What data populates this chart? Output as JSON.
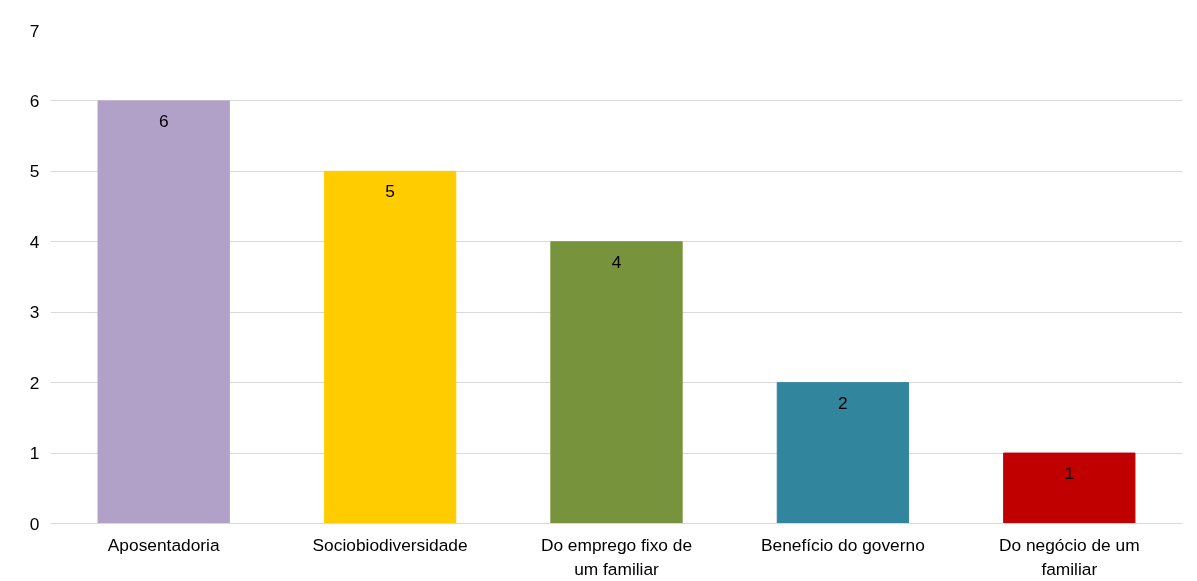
{
  "chart_data": {
    "type": "bar",
    "categories": [
      "Aposentadoria",
      "Sociobiodiversidade",
      "Do emprego fixo de um familiar",
      "Benefício do governo",
      "Do negócio de um familiar"
    ],
    "values": [
      6,
      5,
      4,
      2,
      1
    ],
    "colors": [
      "#b1a0c7",
      "#ffcc00",
      "#77933c",
      "#31859c",
      "#c00000"
    ],
    "ylim": [
      0,
      7
    ],
    "yticks": [
      0,
      1,
      2,
      3,
      4,
      5,
      6,
      7
    ],
    "grid": "y",
    "data_labels": true
  }
}
